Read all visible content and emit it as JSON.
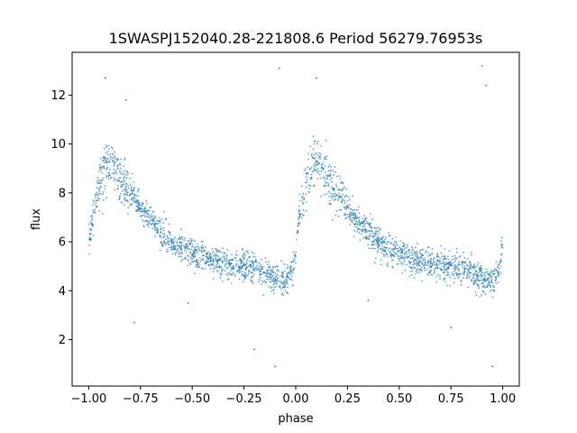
{
  "chart_data": {
    "type": "scatter",
    "title": "1SWASPJ152040.28-221808.6 Period 56279.76953s",
    "xlabel": "phase",
    "ylabel": "flux",
    "xlim": [
      -1.08,
      1.08
    ],
    "ylim": [
      0.1,
      13.75
    ],
    "xticks": [
      -1.0,
      -0.75,
      -0.5,
      -0.25,
      0.0,
      0.25,
      0.5,
      0.75,
      1.0
    ],
    "xtick_labels": [
      "−1.00",
      "−0.75",
      "−0.50",
      "−0.25",
      "0.00",
      "0.25",
      "0.50",
      "0.75",
      "1.00"
    ],
    "yticks": [
      2,
      4,
      6,
      8,
      10,
      12
    ],
    "ytick_labels": [
      "2",
      "4",
      "6",
      "8",
      "10",
      "12"
    ],
    "grid": false,
    "marker_color": "#1f77b4",
    "series": [
      {
        "x_range": [
          -1.0,
          1.0
        ],
        "profile": [
          {
            "phase": 0.0,
            "flux": 5.8
          },
          {
            "phase": 0.02,
            "flux": 7.2
          },
          {
            "phase": 0.05,
            "flux": 8.3
          },
          {
            "phase": 0.08,
            "flux": 9.1
          },
          {
            "phase": 0.1,
            "flux": 9.3
          },
          {
            "phase": 0.15,
            "flux": 8.6
          },
          {
            "phase": 0.2,
            "flux": 8.0
          },
          {
            "phase": 0.25,
            "flux": 7.4
          },
          {
            "phase": 0.3,
            "flux": 6.9
          },
          {
            "phase": 0.35,
            "flux": 6.4
          },
          {
            "phase": 0.4,
            "flux": 6.0
          },
          {
            "phase": 0.45,
            "flux": 5.7
          },
          {
            "phase": 0.5,
            "flux": 5.5
          },
          {
            "phase": 0.55,
            "flux": 5.3
          },
          {
            "phase": 0.6,
            "flux": 5.2
          },
          {
            "phase": 0.65,
            "flux": 5.1
          },
          {
            "phase": 0.7,
            "flux": 5.0
          },
          {
            "phase": 0.75,
            "flux": 5.0
          },
          {
            "phase": 0.8,
            "flux": 4.9
          },
          {
            "phase": 0.85,
            "flux": 4.7
          },
          {
            "phase": 0.9,
            "flux": 4.5
          },
          {
            "phase": 0.95,
            "flux": 4.4
          },
          {
            "phase": 0.98,
            "flux": 4.7
          },
          {
            "phase": 1.0,
            "flux": 5.8
          }
        ],
        "scatter_std": 0.3,
        "outliers": [
          {
            "x": -0.92,
            "y": 12.7
          },
          {
            "x": -0.82,
            "y": 11.8
          },
          {
            "x": -0.78,
            "y": 2.7
          },
          {
            "x": -0.52,
            "y": 3.5
          },
          {
            "x": -0.2,
            "y": 1.6
          },
          {
            "x": -0.1,
            "y": 0.9
          },
          {
            "x": -0.08,
            "y": 13.1
          },
          {
            "x": 0.1,
            "y": 12.7
          },
          {
            "x": 0.35,
            "y": 3.6
          },
          {
            "x": 0.75,
            "y": 2.5
          },
          {
            "x": 0.9,
            "y": 13.2
          },
          {
            "x": 0.92,
            "y": 12.4
          },
          {
            "x": 0.95,
            "y": 0.9
          }
        ]
      }
    ]
  }
}
